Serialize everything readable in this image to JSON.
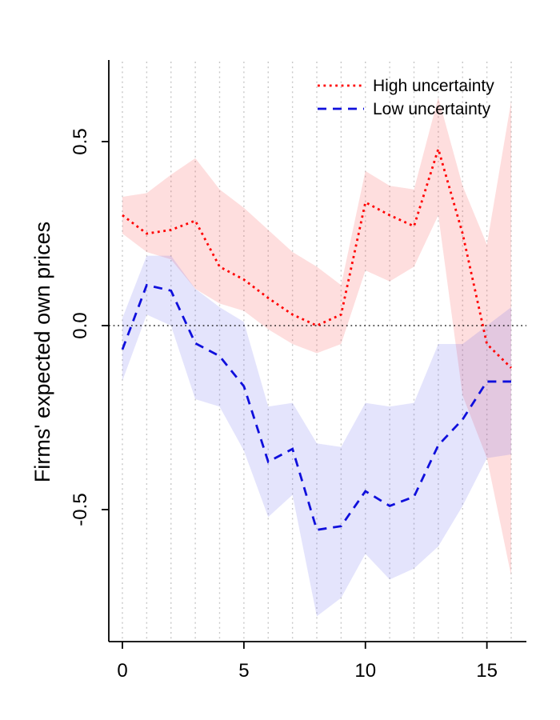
{
  "figure": {
    "background": "#ffffff",
    "grid_color": "#c8c8c8",
    "axis_color": "#000000"
  },
  "chart_data": {
    "type": "line",
    "title": "",
    "xlabel": "",
    "ylabel": "Firms' expected own prices",
    "x": [
      0,
      1,
      2,
      3,
      4,
      5,
      6,
      7,
      8,
      9,
      10,
      11,
      12,
      13,
      14,
      15,
      16
    ],
    "xlim": [
      0,
      16
    ],
    "ylim": [
      -0.86,
      0.72
    ],
    "x_ticks": [
      {
        "v": 0,
        "label": "0"
      },
      {
        "v": 5,
        "label": "5"
      },
      {
        "v": 10,
        "label": "10"
      },
      {
        "v": 15,
        "label": "15"
      }
    ],
    "y_ticks": [
      {
        "v": 0.5,
        "label": "0.5"
      },
      {
        "v": 0.0,
        "label": "0.0"
      },
      {
        "v": -0.5,
        "label": "-0.5"
      }
    ],
    "grid": "vertical-dotted-at-every-integer-x",
    "reference_line_y": 0,
    "legend_position": "top-right",
    "series": [
      {
        "name": "High uncertainty",
        "color": "#ff0000",
        "style": "dotted",
        "values": [
          0.3,
          0.25,
          0.26,
          0.285,
          0.16,
          0.125,
          0.075,
          0.03,
          0.0,
          0.03,
          0.335,
          0.3,
          0.27,
          0.48,
          0.25,
          -0.05,
          -0.115
        ],
        "band_upper": [
          0.35,
          0.36,
          0.41,
          0.455,
          0.37,
          0.32,
          0.26,
          0.2,
          0.16,
          0.11,
          0.42,
          0.38,
          0.37,
          0.62,
          0.38,
          0.22,
          0.61
        ],
        "band_lower": [
          0.25,
          0.2,
          0.18,
          0.1,
          0.06,
          0.04,
          -0.01,
          -0.05,
          -0.075,
          -0.05,
          0.15,
          0.12,
          0.16,
          0.3,
          -0.19,
          -0.36,
          -0.68
        ],
        "band_color": "rgba(250,60,60,0.17)"
      },
      {
        "name": "Low uncertainty",
        "color": "#0f0fdc",
        "style": "dashed",
        "values": [
          -0.065,
          0.11,
          0.095,
          -0.048,
          -0.083,
          -0.165,
          -0.37,
          -0.335,
          -0.555,
          -0.545,
          -0.45,
          -0.49,
          -0.465,
          -0.325,
          -0.255,
          -0.152,
          -0.152
        ],
        "band_upper": [
          0.02,
          0.19,
          0.19,
          0.1,
          0.05,
          0.01,
          -0.22,
          -0.21,
          -0.32,
          -0.33,
          -0.21,
          -0.22,
          -0.21,
          -0.05,
          -0.05,
          0.0,
          0.05
        ],
        "band_lower": [
          -0.15,
          0.03,
          0.0,
          -0.2,
          -0.22,
          -0.34,
          -0.52,
          -0.46,
          -0.79,
          -0.74,
          -0.62,
          -0.69,
          -0.66,
          -0.6,
          -0.49,
          -0.36,
          -0.35
        ],
        "band_color": "rgba(90,90,235,0.16)"
      }
    ]
  }
}
